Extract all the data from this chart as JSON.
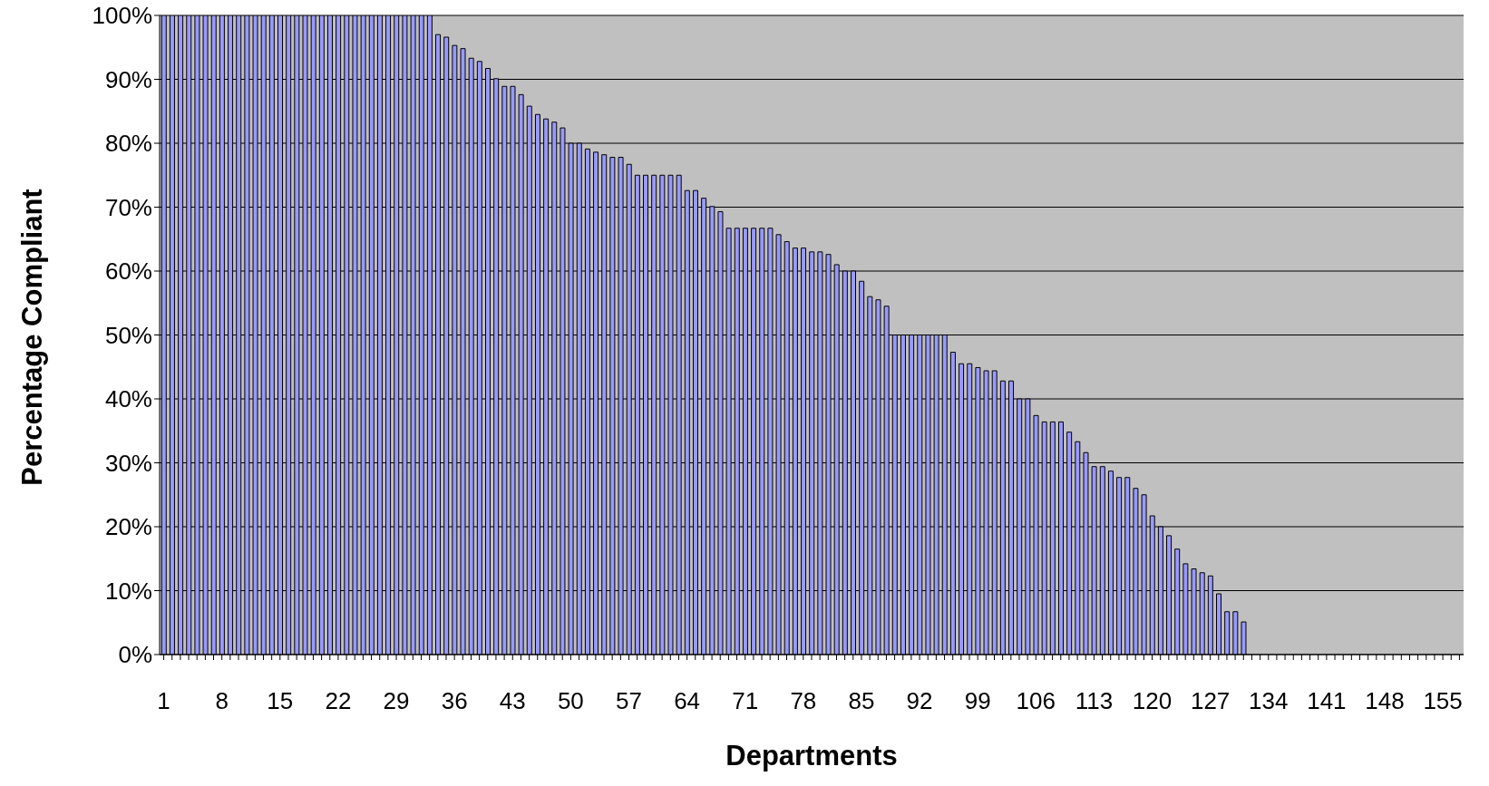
{
  "chart_data": {
    "type": "bar",
    "xlabel": "Departments",
    "ylabel": "Percentage Compliant",
    "categories": [
      "1",
      null,
      null,
      null,
      null,
      null,
      null,
      "8",
      null,
      null,
      null,
      null,
      null,
      null,
      "15",
      null,
      null,
      null,
      null,
      null,
      null,
      "22",
      null,
      null,
      null,
      null,
      null,
      null,
      "29",
      null,
      null,
      null,
      null,
      null,
      null,
      "36",
      null,
      null,
      null,
      null,
      null,
      null,
      "43",
      null,
      null,
      null,
      null,
      null,
      null,
      "50",
      null,
      null,
      null,
      null,
      null,
      null,
      "57",
      null,
      null,
      null,
      null,
      null,
      null,
      "64",
      null,
      null,
      null,
      null,
      null,
      null,
      "71",
      null,
      null,
      null,
      null,
      null,
      null,
      "78",
      null,
      null,
      null,
      null,
      null,
      null,
      "85",
      null,
      null,
      null,
      null,
      null,
      null,
      "92",
      null,
      null,
      null,
      null,
      null,
      null,
      "99",
      null,
      null,
      null,
      null,
      null,
      null,
      "106",
      null,
      null,
      null,
      null,
      null,
      null,
      "113",
      null,
      null,
      null,
      null,
      null,
      null,
      "120",
      null,
      null,
      null,
      null,
      null,
      null,
      "127",
      null,
      null,
      null,
      null,
      null,
      null,
      "134",
      null,
      null,
      null,
      null,
      null,
      null,
      "141",
      null,
      null,
      null,
      null,
      null,
      null,
      "148",
      null,
      null,
      null,
      null,
      null,
      null,
      "155",
      null,
      null
    ],
    "values": [
      100,
      100,
      100,
      100,
      100,
      100,
      100,
      100,
      100,
      100,
      100,
      100,
      100,
      100,
      100,
      100,
      100,
      100,
      100,
      100,
      100,
      100,
      100,
      100,
      100,
      100,
      100,
      100,
      100,
      100,
      100,
      100,
      100,
      97.0,
      96.6,
      95.3,
      94.8,
      93.3,
      92.8,
      91.7,
      90.1,
      88.9,
      88.9,
      87.6,
      85.8,
      84.5,
      83.8,
      83.3,
      82.4,
      80,
      80,
      79.1,
      78.6,
      78.2,
      77.8,
      77.8,
      76.7,
      75,
      75,
      75,
      75,
      75,
      75,
      72.6,
      72.6,
      71.4,
      70.1,
      69.3,
      66.7,
      66.7,
      66.7,
      66.7,
      66.7,
      66.7,
      65.7,
      64.6,
      63.6,
      63.6,
      63.0,
      63.0,
      62.6,
      61.0,
      60,
      60,
      58.4,
      56.0,
      55.5,
      54.5,
      50,
      50,
      50,
      50,
      50,
      50,
      50,
      47.3,
      45.5,
      45.5,
      44.9,
      44.4,
      44.4,
      42.8,
      42.8,
      40,
      40,
      37.4,
      36.4,
      36.4,
      36.4,
      34.8,
      33.3,
      31.6,
      29.4,
      29.4,
      28.7,
      27.7,
      27.7,
      26.0,
      25.0,
      21.7,
      20,
      18.6,
      16.5,
      14.2,
      13.4,
      12.8,
      12.3,
      9.5,
      6.7,
      6.7,
      5.1,
      null,
      null,
      null,
      null,
      null,
      null,
      null,
      null,
      null,
      null,
      null,
      null,
      null,
      null,
      null,
      null,
      null,
      null,
      null,
      null,
      null,
      null,
      null,
      null,
      null,
      null
    ],
    "color": "#9999ff",
    "ylim": [
      0,
      100
    ],
    "yticks": [
      {
        "value": 0,
        "label": "0%"
      },
      {
        "value": 10,
        "label": "10%"
      },
      {
        "value": 20,
        "label": "20%"
      },
      {
        "value": 30,
        "label": "30%"
      },
      {
        "value": 40,
        "label": "40%"
      },
      {
        "value": 50,
        "label": "50%"
      },
      {
        "value": 60,
        "label": "60%"
      },
      {
        "value": 70,
        "label": "70%"
      },
      {
        "value": 80,
        "label": "80%"
      },
      {
        "value": 90,
        "label": "90%"
      },
      {
        "value": 100,
        "label": "100%"
      }
    ],
    "grid": "y"
  }
}
